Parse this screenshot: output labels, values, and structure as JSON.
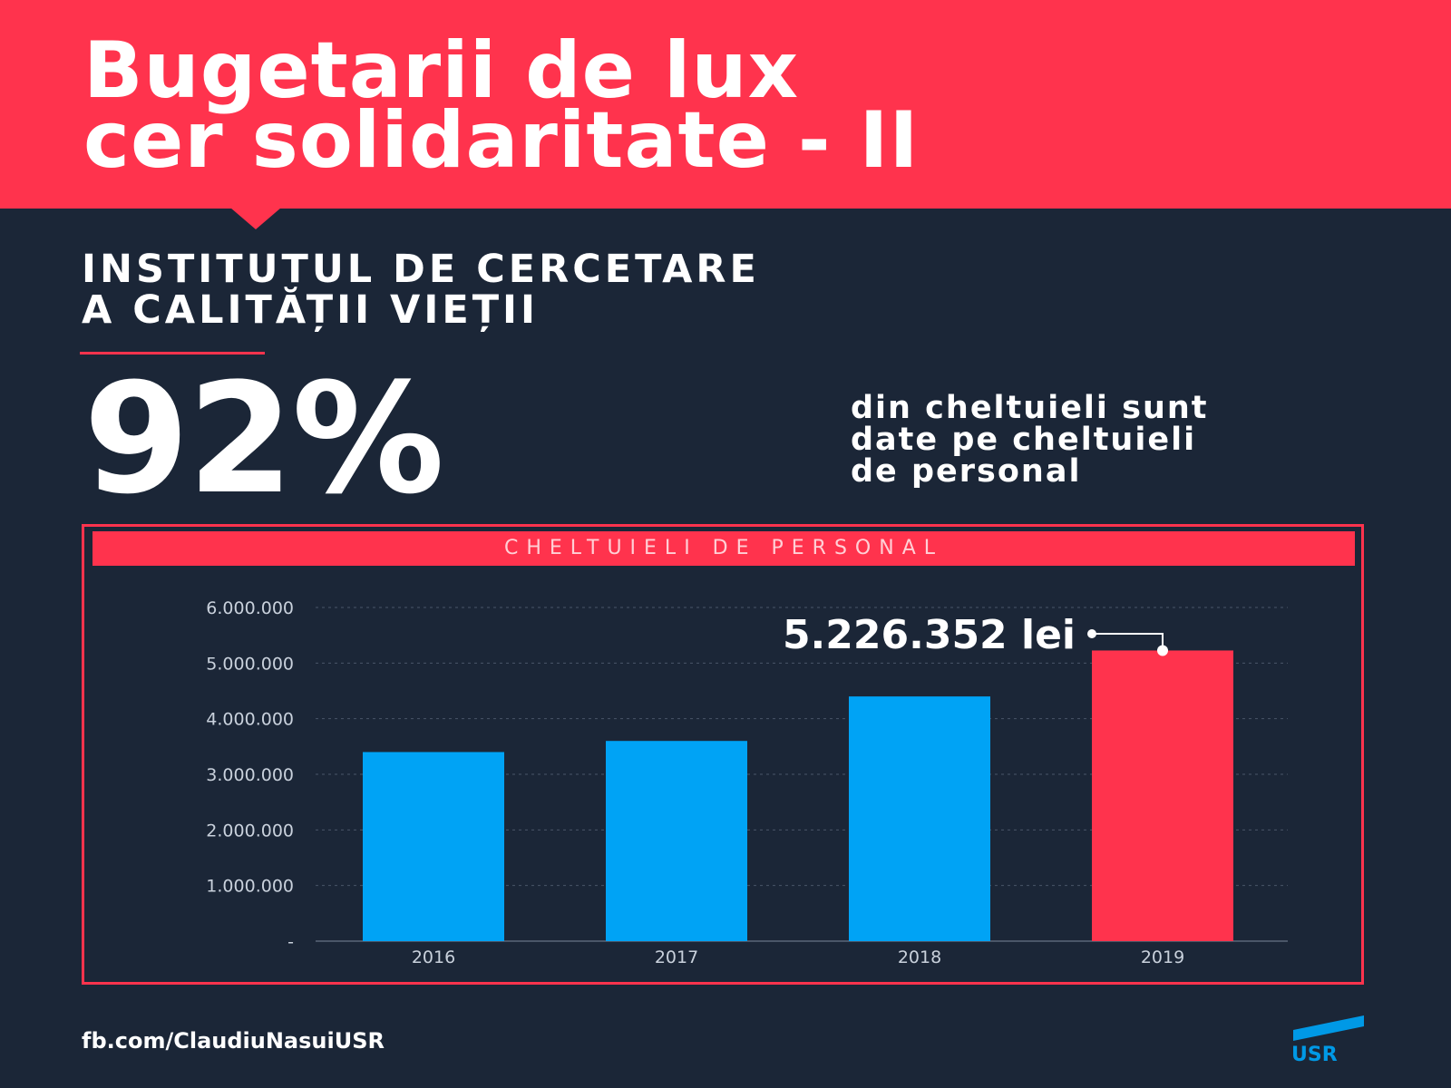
{
  "header": {
    "title_line1": "Bugetarii de lux",
    "title_line2": "cer solidaritate - II",
    "color": "#ff334d"
  },
  "institution": {
    "line1": "INSTITUTUL DE CERCETARE",
    "line2": "A CALITĂȚII VIEȚII"
  },
  "stat": {
    "value": "92%",
    "desc_line1": "din cheltuieli sunt",
    "desc_line2": "date pe cheltuieli",
    "desc_line3": "de personal"
  },
  "chart_data": {
    "type": "bar",
    "title": "CHELTUIELI DE PERSONAL",
    "categories": [
      "2016",
      "2017",
      "2018",
      "2019"
    ],
    "values": [
      3400000,
      3600000,
      4400000,
      5226352
    ],
    "bar_colors": [
      "#00a3f5",
      "#00a3f5",
      "#00a3f5",
      "#ff334d"
    ],
    "ylim": [
      0,
      6000000
    ],
    "yticks": [
      0,
      1000000,
      2000000,
      3000000,
      4000000,
      5000000,
      6000000
    ],
    "ytick_labels": [
      "-",
      "1.000.000",
      "2.000.000",
      "3.000.000",
      "4.000.000",
      "5.000.000",
      "6.000.000"
    ],
    "xlabel": "",
    "ylabel": "",
    "grid": true,
    "annotation": {
      "text": "5.226.352 lei",
      "category": "2019"
    }
  },
  "footer": {
    "link": "fb.com/ClaudiuNasuiUSR",
    "logo_text": "USR",
    "logo_color": "#0099e6"
  },
  "colors": {
    "background": "#1b2637",
    "accent": "#ff334d",
    "bar": "#00a3f5"
  }
}
